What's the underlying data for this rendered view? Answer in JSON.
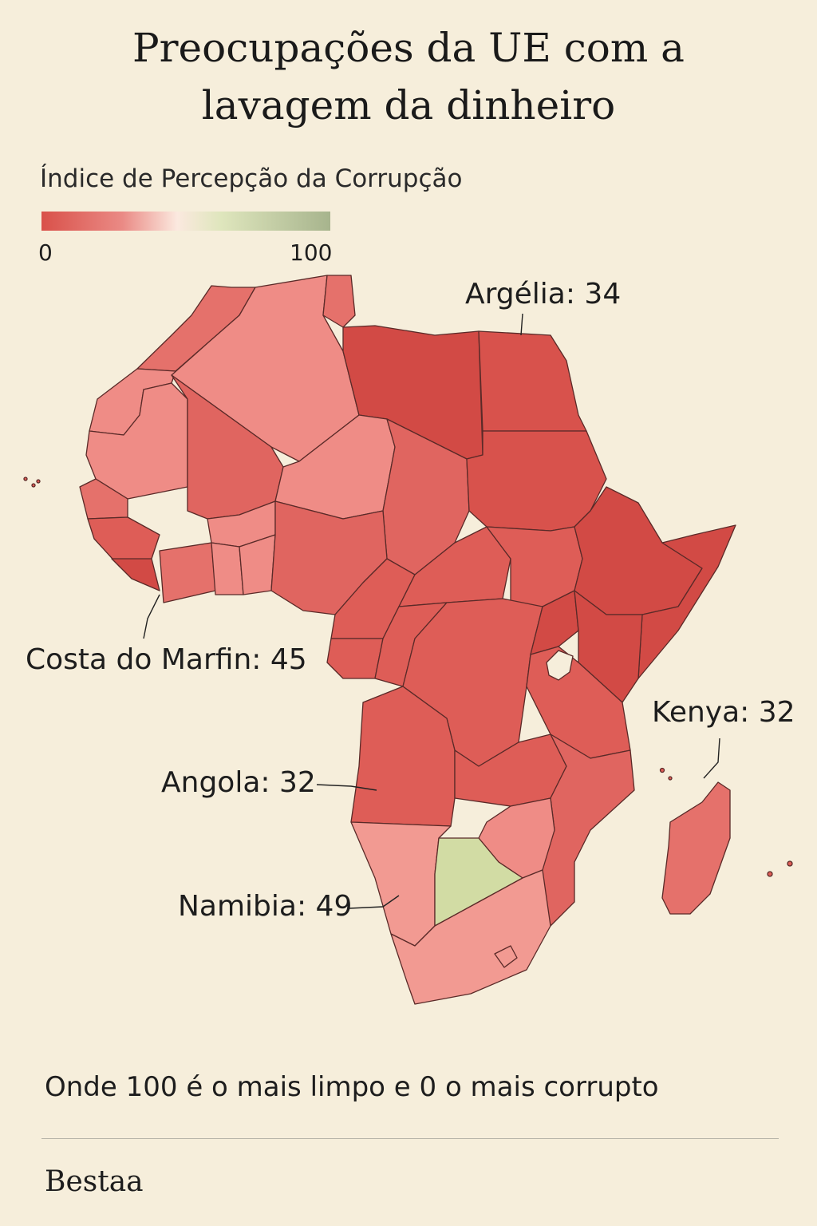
{
  "title_lines": [
    "Preocupações da UE com a",
    "lavagem da dinheiro"
  ],
  "legend": {
    "title": "Índice de Percepção da Corrupção",
    "min": "0",
    "max": "100",
    "colors": [
      "#d9514a",
      "#ea8a85",
      "#fbe9df",
      "#dfe6bd",
      "#a7b48d"
    ]
  },
  "labels": {
    "algeria": "Argélia: 34",
    "ivory_coast": "Costa do Marfin: 45",
    "kenya": "Kenya: 32",
    "angola": "Angola: 32",
    "namibia": "Namibia: 49"
  },
  "colors": {
    "background": "#f6eedb",
    "dark_red": "#d24a45",
    "red": "#de5d57",
    "mid_red": "#e5716b",
    "light_red": "#ef8c86",
    "pale_red": "#f29a92",
    "green": "#d2dca4",
    "border": "#5a2a28"
  },
  "footnote": "Onde 100 é o mais limpo e 0 o mais corrupto",
  "source": "Bestaa"
}
